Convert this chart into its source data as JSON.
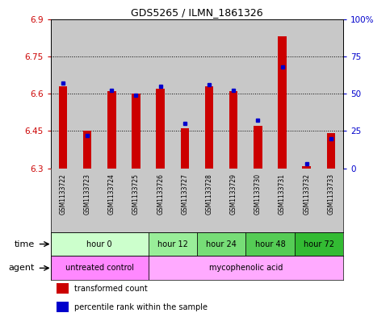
{
  "title": "GDS5265 / ILMN_1861326",
  "samples": [
    "GSM1133722",
    "GSM1133723",
    "GSM1133724",
    "GSM1133725",
    "GSM1133726",
    "GSM1133727",
    "GSM1133728",
    "GSM1133729",
    "GSM1133730",
    "GSM1133731",
    "GSM1133732",
    "GSM1133733"
  ],
  "transformed_count": [
    6.63,
    6.45,
    6.61,
    6.6,
    6.62,
    6.46,
    6.63,
    6.61,
    6.47,
    6.83,
    6.31,
    6.44
  ],
  "percentile_rank": [
    57,
    22,
    52,
    49,
    55,
    30,
    56,
    52,
    32,
    68,
    3,
    20
  ],
  "ylim_left": [
    6.3,
    6.9
  ],
  "ylim_right": [
    0,
    100
  ],
  "yticks_left": [
    6.3,
    6.45,
    6.6,
    6.75,
    6.9
  ],
  "yticks_right": [
    0,
    25,
    50,
    75,
    100
  ],
  "ytick_labels_right": [
    "0",
    "25",
    "50",
    "75",
    "100%"
  ],
  "bar_color": "#cc0000",
  "dot_color": "#0000cc",
  "bar_bottom": 6.3,
  "col_bg_color": "#c8c8c8",
  "time_groups": [
    {
      "label": "hour 0",
      "start": 0,
      "end": 4,
      "color": "#ccffcc"
    },
    {
      "label": "hour 12",
      "start": 4,
      "end": 6,
      "color": "#99ee99"
    },
    {
      "label": "hour 24",
      "start": 6,
      "end": 8,
      "color": "#77dd77"
    },
    {
      "label": "hour 48",
      "start": 8,
      "end": 10,
      "color": "#55cc55"
    },
    {
      "label": "hour 72",
      "start": 10,
      "end": 12,
      "color": "#33bb33"
    }
  ],
  "agent_groups": [
    {
      "label": "untreated control",
      "start": 0,
      "end": 4,
      "color": "#ff88ff"
    },
    {
      "label": "mycophenolic acid",
      "start": 4,
      "end": 12,
      "color": "#ffaaff"
    }
  ],
  "legend_items": [
    {
      "color": "#cc0000",
      "label": "transformed count"
    },
    {
      "color": "#0000cc",
      "label": "percentile rank within the sample"
    }
  ]
}
